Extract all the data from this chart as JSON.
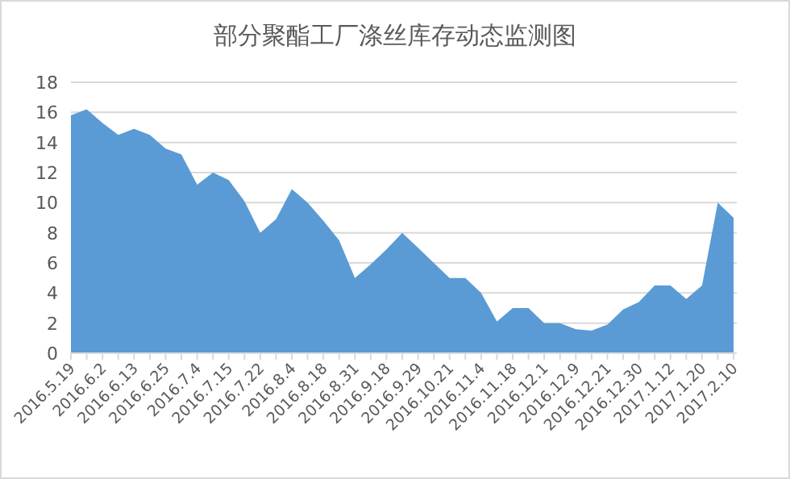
{
  "chart_data": {
    "type": "area",
    "title": "部分聚酯工厂涤丝库存动态监测图",
    "categories": [
      "2016.5.19",
      null,
      "2016.6.2",
      null,
      "2016.6.13",
      null,
      "2016.6.25",
      null,
      "2016.7.4",
      null,
      "2016.7.15",
      null,
      "2016.7.22",
      null,
      "2016.8.4",
      null,
      "2016.8.18",
      null,
      "2016.8.31",
      null,
      "2016.9.18",
      null,
      "2016.9.29",
      null,
      "2016.10.21",
      null,
      "2016.11.4",
      null,
      "2016.11.18",
      null,
      "2016.12.1",
      null,
      "2016.12.9",
      null,
      "2016.12.21",
      null,
      "2016.12.30",
      null,
      "2017.1.12",
      null,
      "2017.1.20",
      null,
      "2017.2.10"
    ],
    "series": [
      {
        "color": "#5b9bd5",
        "values": [
          15.8,
          16.2,
          15.3,
          14.5,
          14.9,
          14.5,
          13.6,
          13.2,
          11.2,
          12.0,
          11.5,
          10.1,
          8.0,
          8.9,
          10.9,
          10.0,
          8.8,
          7.5,
          5.0,
          5.9,
          6.9,
          8.0,
          7.0,
          6.0,
          5.0,
          5.0,
          4.0,
          2.1,
          3.0,
          3.0,
          2.0,
          2.0,
          1.6,
          1.5,
          1.9,
          2.9,
          3.4,
          4.5,
          4.5,
          3.6,
          4.5,
          10.0,
          9.0
        ]
      }
    ],
    "ylim": [
      0,
      18
    ],
    "yticks": [
      0,
      2,
      4,
      6,
      8,
      10,
      12,
      14,
      16,
      18
    ],
    "grid": "y"
  }
}
